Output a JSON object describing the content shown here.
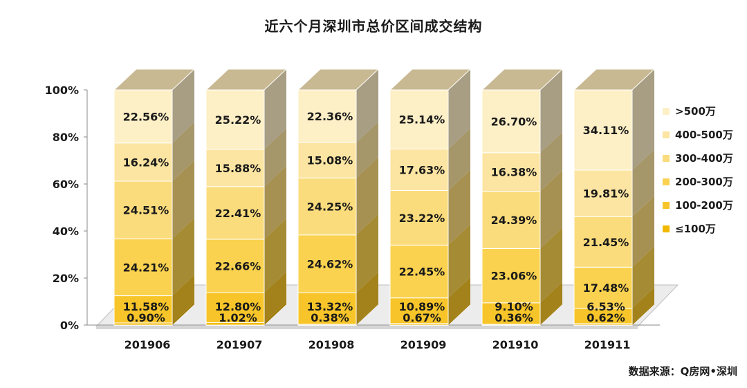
{
  "title": "近六个月深圳市总价区间成交结构",
  "source": "数据来源：Q房网•深圳",
  "y_ticks": [
    "0%",
    "20%",
    "40%",
    "60%",
    "80%",
    "100%"
  ],
  "colors": {
    "≤100万": "#f2b800",
    "100-200万": "#f7c529",
    "200-300万": "#fad24f",
    "300-400万": "#fbdc7c",
    "400-500万": "#fce5a2",
    ">500万": "#fdefc6",
    "top": "#c9b993",
    "floor": "#ececec"
  },
  "chart_data": {
    "type": "bar",
    "stacked": true,
    "three_d": true,
    "title": "近六个月深圳市总价区间成交结构",
    "categories": [
      "201906",
      "201907",
      "201908",
      "201909",
      "201910",
      "201911"
    ],
    "ylim": [
      0,
      100
    ],
    "yunit": "%",
    "legend_position": "right",
    "series": [
      {
        "name": "≤100万",
        "values": [
          0.9,
          1.02,
          0.38,
          0.67,
          0.36,
          0.62
        ],
        "labels": [
          "0.90%",
          "1.02%",
          "0.38%",
          "0.67%",
          "0.36%",
          "0.62%"
        ]
      },
      {
        "name": "100-200万",
        "values": [
          11.58,
          12.8,
          13.32,
          10.89,
          9.1,
          6.53
        ],
        "labels": [
          "11.58%",
          "12.80%",
          "13.32%",
          "10.89%",
          "9.10%",
          "6.53%"
        ]
      },
      {
        "name": "200-300万",
        "values": [
          24.21,
          22.66,
          24.62,
          22.45,
          23.06,
          17.48
        ],
        "labels": [
          "24.21%",
          "22.66%",
          "24.62%",
          "22.45%",
          "23.06%",
          "17.48%"
        ]
      },
      {
        "name": "300-400万",
        "values": [
          24.51,
          22.41,
          24.25,
          23.22,
          24.39,
          21.45
        ],
        "labels": [
          "24.51%",
          "22.41%",
          "24.25%",
          "23.22%",
          "24.39%",
          "21.45%"
        ]
      },
      {
        "name": "400-500万",
        "values": [
          16.24,
          15.88,
          15.08,
          17.63,
          16.38,
          19.81
        ],
        "labels": [
          "16.24%",
          "15.88%",
          "15.08%",
          "17.63%",
          "16.38%",
          "19.81%"
        ]
      },
      {
        "name": ">500万",
        "values": [
          22.56,
          25.22,
          22.36,
          25.14,
          26.7,
          34.11
        ],
        "labels": [
          "22.56%",
          "25.22%",
          "22.36%",
          "25.14%",
          "26.70%",
          "34.11%"
        ]
      }
    ]
  }
}
